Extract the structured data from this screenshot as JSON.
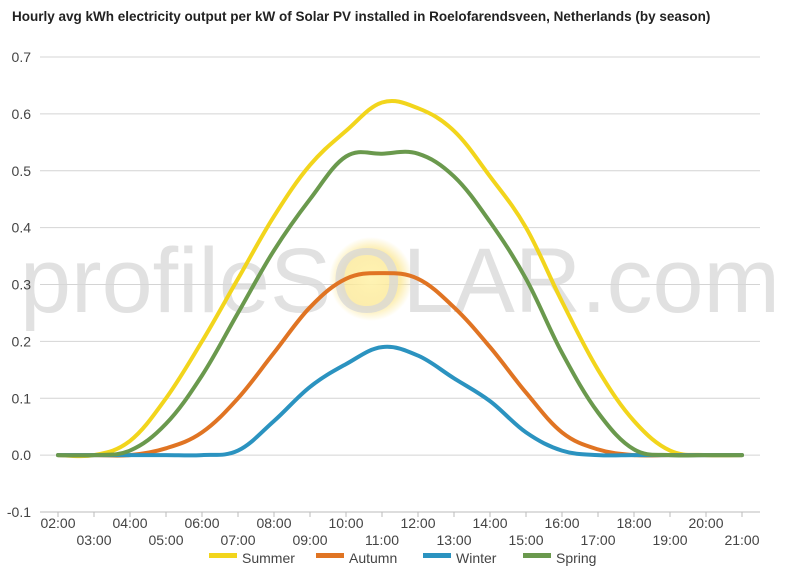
{
  "chart_data": {
    "type": "line",
    "title": "Hourly avg kWh electricity output per kW of Solar PV installed in Roelofarendsveen, Netherlands (by season)",
    "xlabel": "",
    "ylabel": "",
    "ylim": [
      -0.1,
      0.7
    ],
    "xlim_hours": [
      1.5,
      21.5
    ],
    "yticks": [
      "-0.1",
      "0.0",
      "0.1",
      "0.2",
      "0.3",
      "0.4",
      "0.5",
      "0.6",
      "0.7"
    ],
    "xticks_top": [
      "02:00",
      "04:00",
      "06:00",
      "08:00",
      "10:00",
      "12:00",
      "14:00",
      "16:00",
      "18:00",
      "20:00"
    ],
    "xticks_bottom": [
      "03:00",
      "05:00",
      "07:00",
      "09:00",
      "11:00",
      "13:00",
      "15:00",
      "17:00",
      "19:00",
      "21:00"
    ],
    "grid": true,
    "legend_position": "bottom",
    "watermark": "profileSOLAR.com",
    "x": [
      "02:00",
      "03:00",
      "04:00",
      "05:00",
      "06:00",
      "07:00",
      "08:00",
      "09:00",
      "10:00",
      "11:00",
      "12:00",
      "13:00",
      "14:00",
      "15:00",
      "16:00",
      "17:00",
      "18:00",
      "19:00",
      "20:00",
      "21:00"
    ],
    "series": [
      {
        "name": "Summer",
        "color": "#f2d51c",
        "values": [
          0.0,
          0.0,
          0.025,
          0.1,
          0.2,
          0.31,
          0.42,
          0.51,
          0.57,
          0.62,
          0.61,
          0.57,
          0.49,
          0.4,
          0.27,
          0.15,
          0.06,
          0.008,
          0.0,
          0.0
        ]
      },
      {
        "name": "Autumn",
        "color": "#e07423",
        "values": [
          0.0,
          0.0,
          0.0,
          0.012,
          0.04,
          0.1,
          0.18,
          0.26,
          0.31,
          0.32,
          0.31,
          0.26,
          0.19,
          0.11,
          0.04,
          0.01,
          0.0,
          0.0,
          0.0,
          0.0
        ]
      },
      {
        "name": "Winter",
        "color": "#2b93c0",
        "values": [
          0.0,
          0.0,
          0.0,
          0.0,
          0.0,
          0.008,
          0.06,
          0.12,
          0.16,
          0.19,
          0.175,
          0.135,
          0.095,
          0.04,
          0.008,
          0.0,
          0.0,
          0.0,
          0.0,
          0.0
        ]
      },
      {
        "name": "Spring",
        "color": "#6a994d",
        "values": [
          0.0,
          0.0,
          0.008,
          0.055,
          0.14,
          0.25,
          0.36,
          0.45,
          0.525,
          0.53,
          0.53,
          0.49,
          0.41,
          0.31,
          0.18,
          0.075,
          0.01,
          0.0,
          0.0,
          0.0
        ]
      }
    ]
  }
}
